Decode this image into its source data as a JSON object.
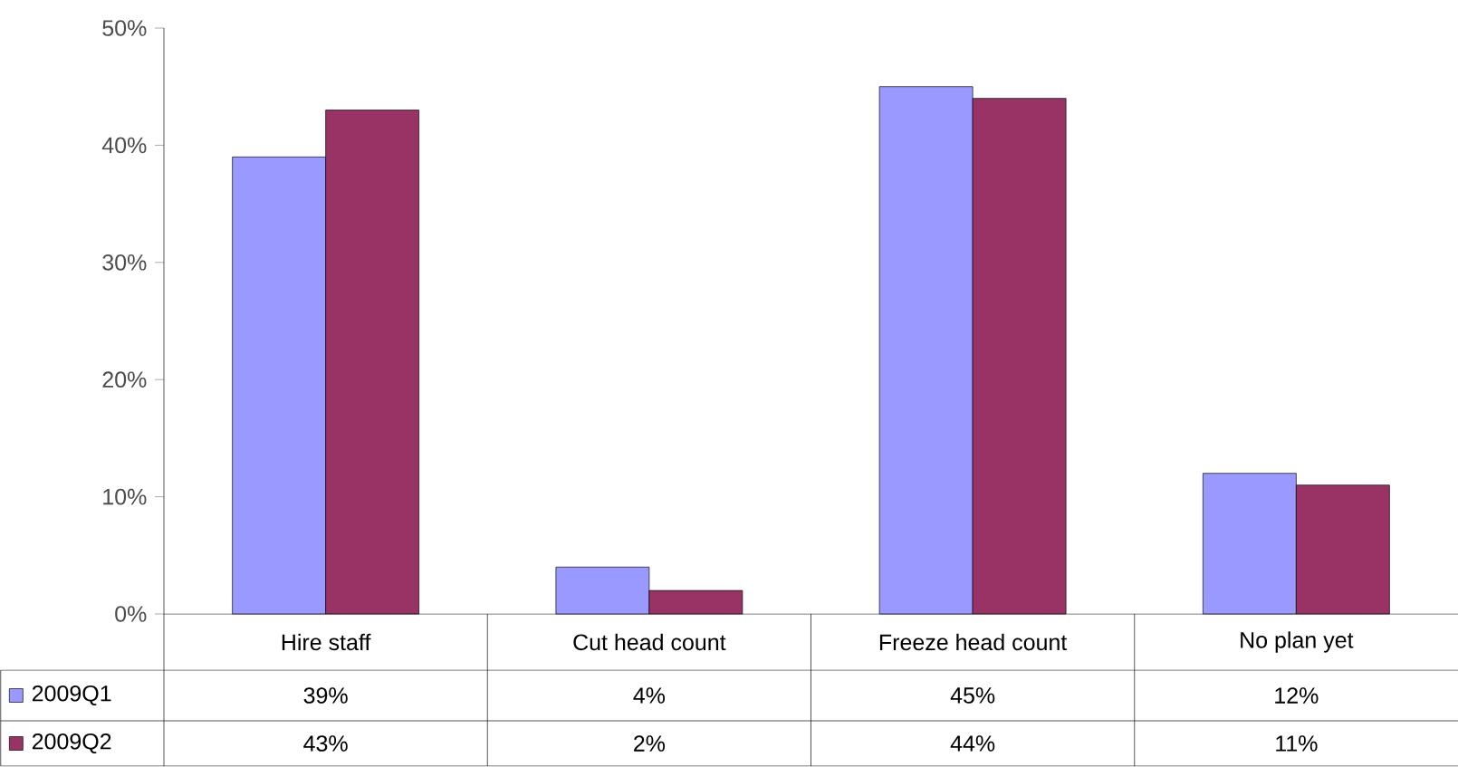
{
  "chart_data": {
    "type": "bar",
    "categories": [
      "Hire staff",
      "Cut head count",
      "Freeze head count",
      "No plan yet"
    ],
    "series": [
      {
        "name": "2009Q1",
        "color": "#9999ff",
        "values": [
          39,
          4,
          45,
          12
        ],
        "value_labels": [
          "39%",
          "4%",
          "45%",
          "12%"
        ]
      },
      {
        "name": "2009Q2",
        "color": "#993366",
        "values": [
          43,
          2,
          44,
          11
        ],
        "value_labels": [
          "43%",
          "2%",
          "44%",
          "11%"
        ]
      }
    ],
    "ylim": [
      0,
      50
    ],
    "yticks": [
      {
        "value": 0,
        "label": "0%"
      },
      {
        "value": 10,
        "label": "10%"
      },
      {
        "value": 20,
        "label": "20%"
      },
      {
        "value": 30,
        "label": "30%"
      },
      {
        "value": 40,
        "label": "40%"
      },
      {
        "value": 50,
        "label": "50%"
      }
    ],
    "legend": "bottom left"
  }
}
